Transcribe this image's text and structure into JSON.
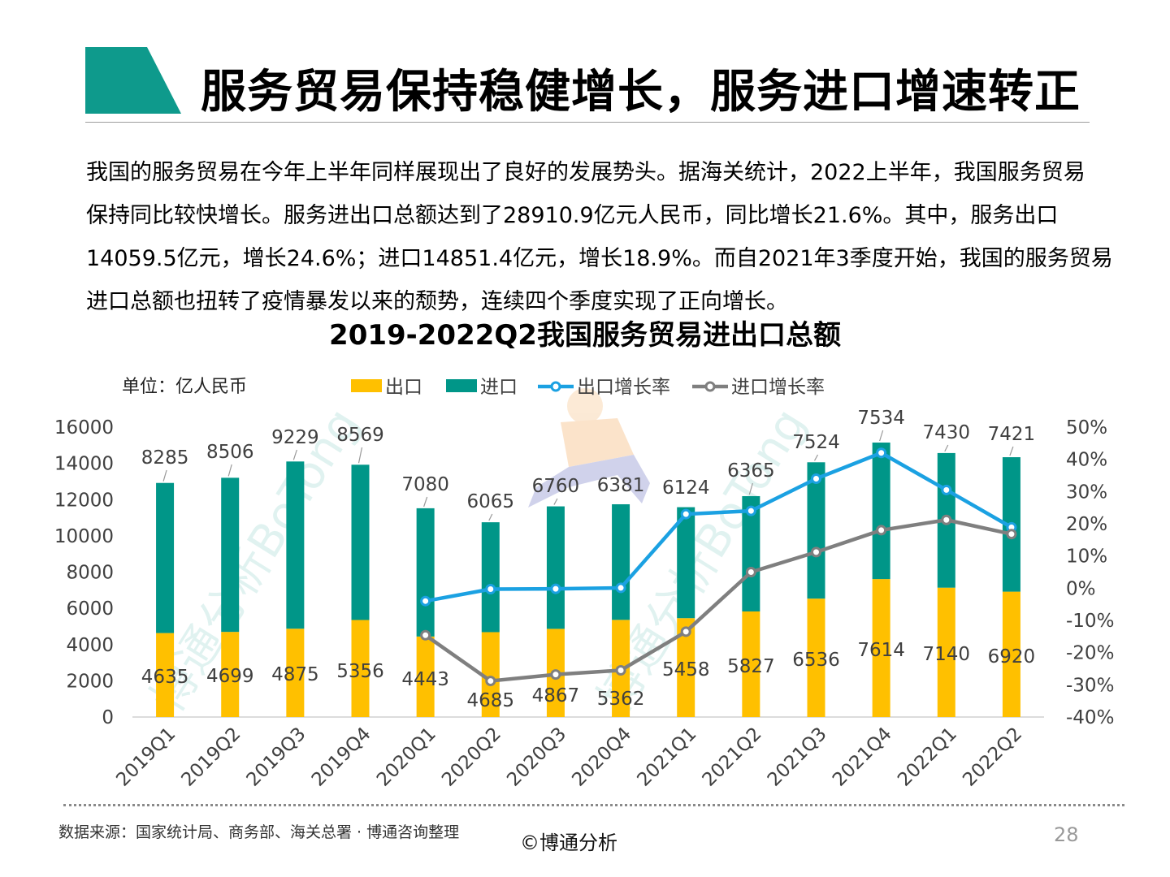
{
  "page": {
    "title": "服务贸易保持稳健增长，服务进口增速转正",
    "paragraph_lines": [
      "我国的服务贸易在今年上半年同样展现出了良好的发展势头。据海关统计，2022上半年，我国服务贸易",
      "保持同比较快增长。服务进出口总额达到了28910.9亿元人民币，同比增长21.6%。其中，服务出口",
      "14059.5亿元，增长24.6%；进口14851.4亿元，增长18.9%。而自2021年3季度开始，我国的服务贸易",
      "进口总额也扭转了疫情暴发以来的颓势，连续四个季度实现了正向增长。"
    ],
    "source": "数据来源：国家统计局、商务部、海关总署 · 博通咨询整理",
    "copyright": "©博通分析",
    "page_number": "28",
    "watermark_text": "博通分析BoTong",
    "colors": {
      "export_bar": "#FFC000",
      "import_bar": "#009688",
      "export_rate_line": "#1BA1E2",
      "import_rate_line": "#7F7F7F",
      "title_shape": "#0E9A8C"
    }
  },
  "chart_data": {
    "type": "bar",
    "stacked": true,
    "title": "2019-2022Q2我国服务贸易进出口总额",
    "unit_label": "单位：亿人民币",
    "categories": [
      "2019Q1",
      "2019Q2",
      "2019Q3",
      "2019Q4",
      "2020Q1",
      "2020Q2",
      "2020Q3",
      "2020Q4",
      "2021Q1",
      "2021Q2",
      "2021Q3",
      "2021Q4",
      "2022Q1",
      "2022Q2"
    ],
    "series": [
      {
        "name": "出口",
        "type": "bar",
        "axis": "left",
        "values": [
          4635,
          4699,
          4875,
          5356,
          4443,
          4685,
          4867,
          5362,
          5458,
          5827,
          6536,
          7614,
          7140,
          6920
        ]
      },
      {
        "name": "进口",
        "type": "bar",
        "axis": "left",
        "values": [
          8285,
          8506,
          9229,
          8569,
          7080,
          6065,
          6760,
          6381,
          6124,
          6365,
          7524,
          7534,
          7430,
          7421
        ]
      },
      {
        "name": "出口增长率",
        "type": "line",
        "axis": "right",
        "values": [
          null,
          null,
          null,
          null,
          -4,
          -0.3,
          -0.2,
          0.1,
          23,
          24,
          34,
          42,
          30.5,
          18.9
        ]
      },
      {
        "name": "进口增长率",
        "type": "line",
        "axis": "right",
        "values": [
          null,
          null,
          null,
          null,
          -14.6,
          -28.8,
          -26.8,
          -25.5,
          -13.5,
          5,
          11.2,
          18,
          21.2,
          16.8
        ]
      }
    ],
    "y_left": {
      "min": 0,
      "max": 16000,
      "ticks": [
        "0",
        "2000",
        "4000",
        "6000",
        "8000",
        "10000",
        "12000",
        "14000",
        "16000"
      ]
    },
    "y_right": {
      "min": -40,
      "max": 50,
      "ticks": [
        "-40%",
        "-30%",
        "-20%",
        "-10%",
        "0%",
        "10%",
        "20%",
        "30%",
        "40%",
        "50%"
      ]
    },
    "legend_position": "top"
  }
}
